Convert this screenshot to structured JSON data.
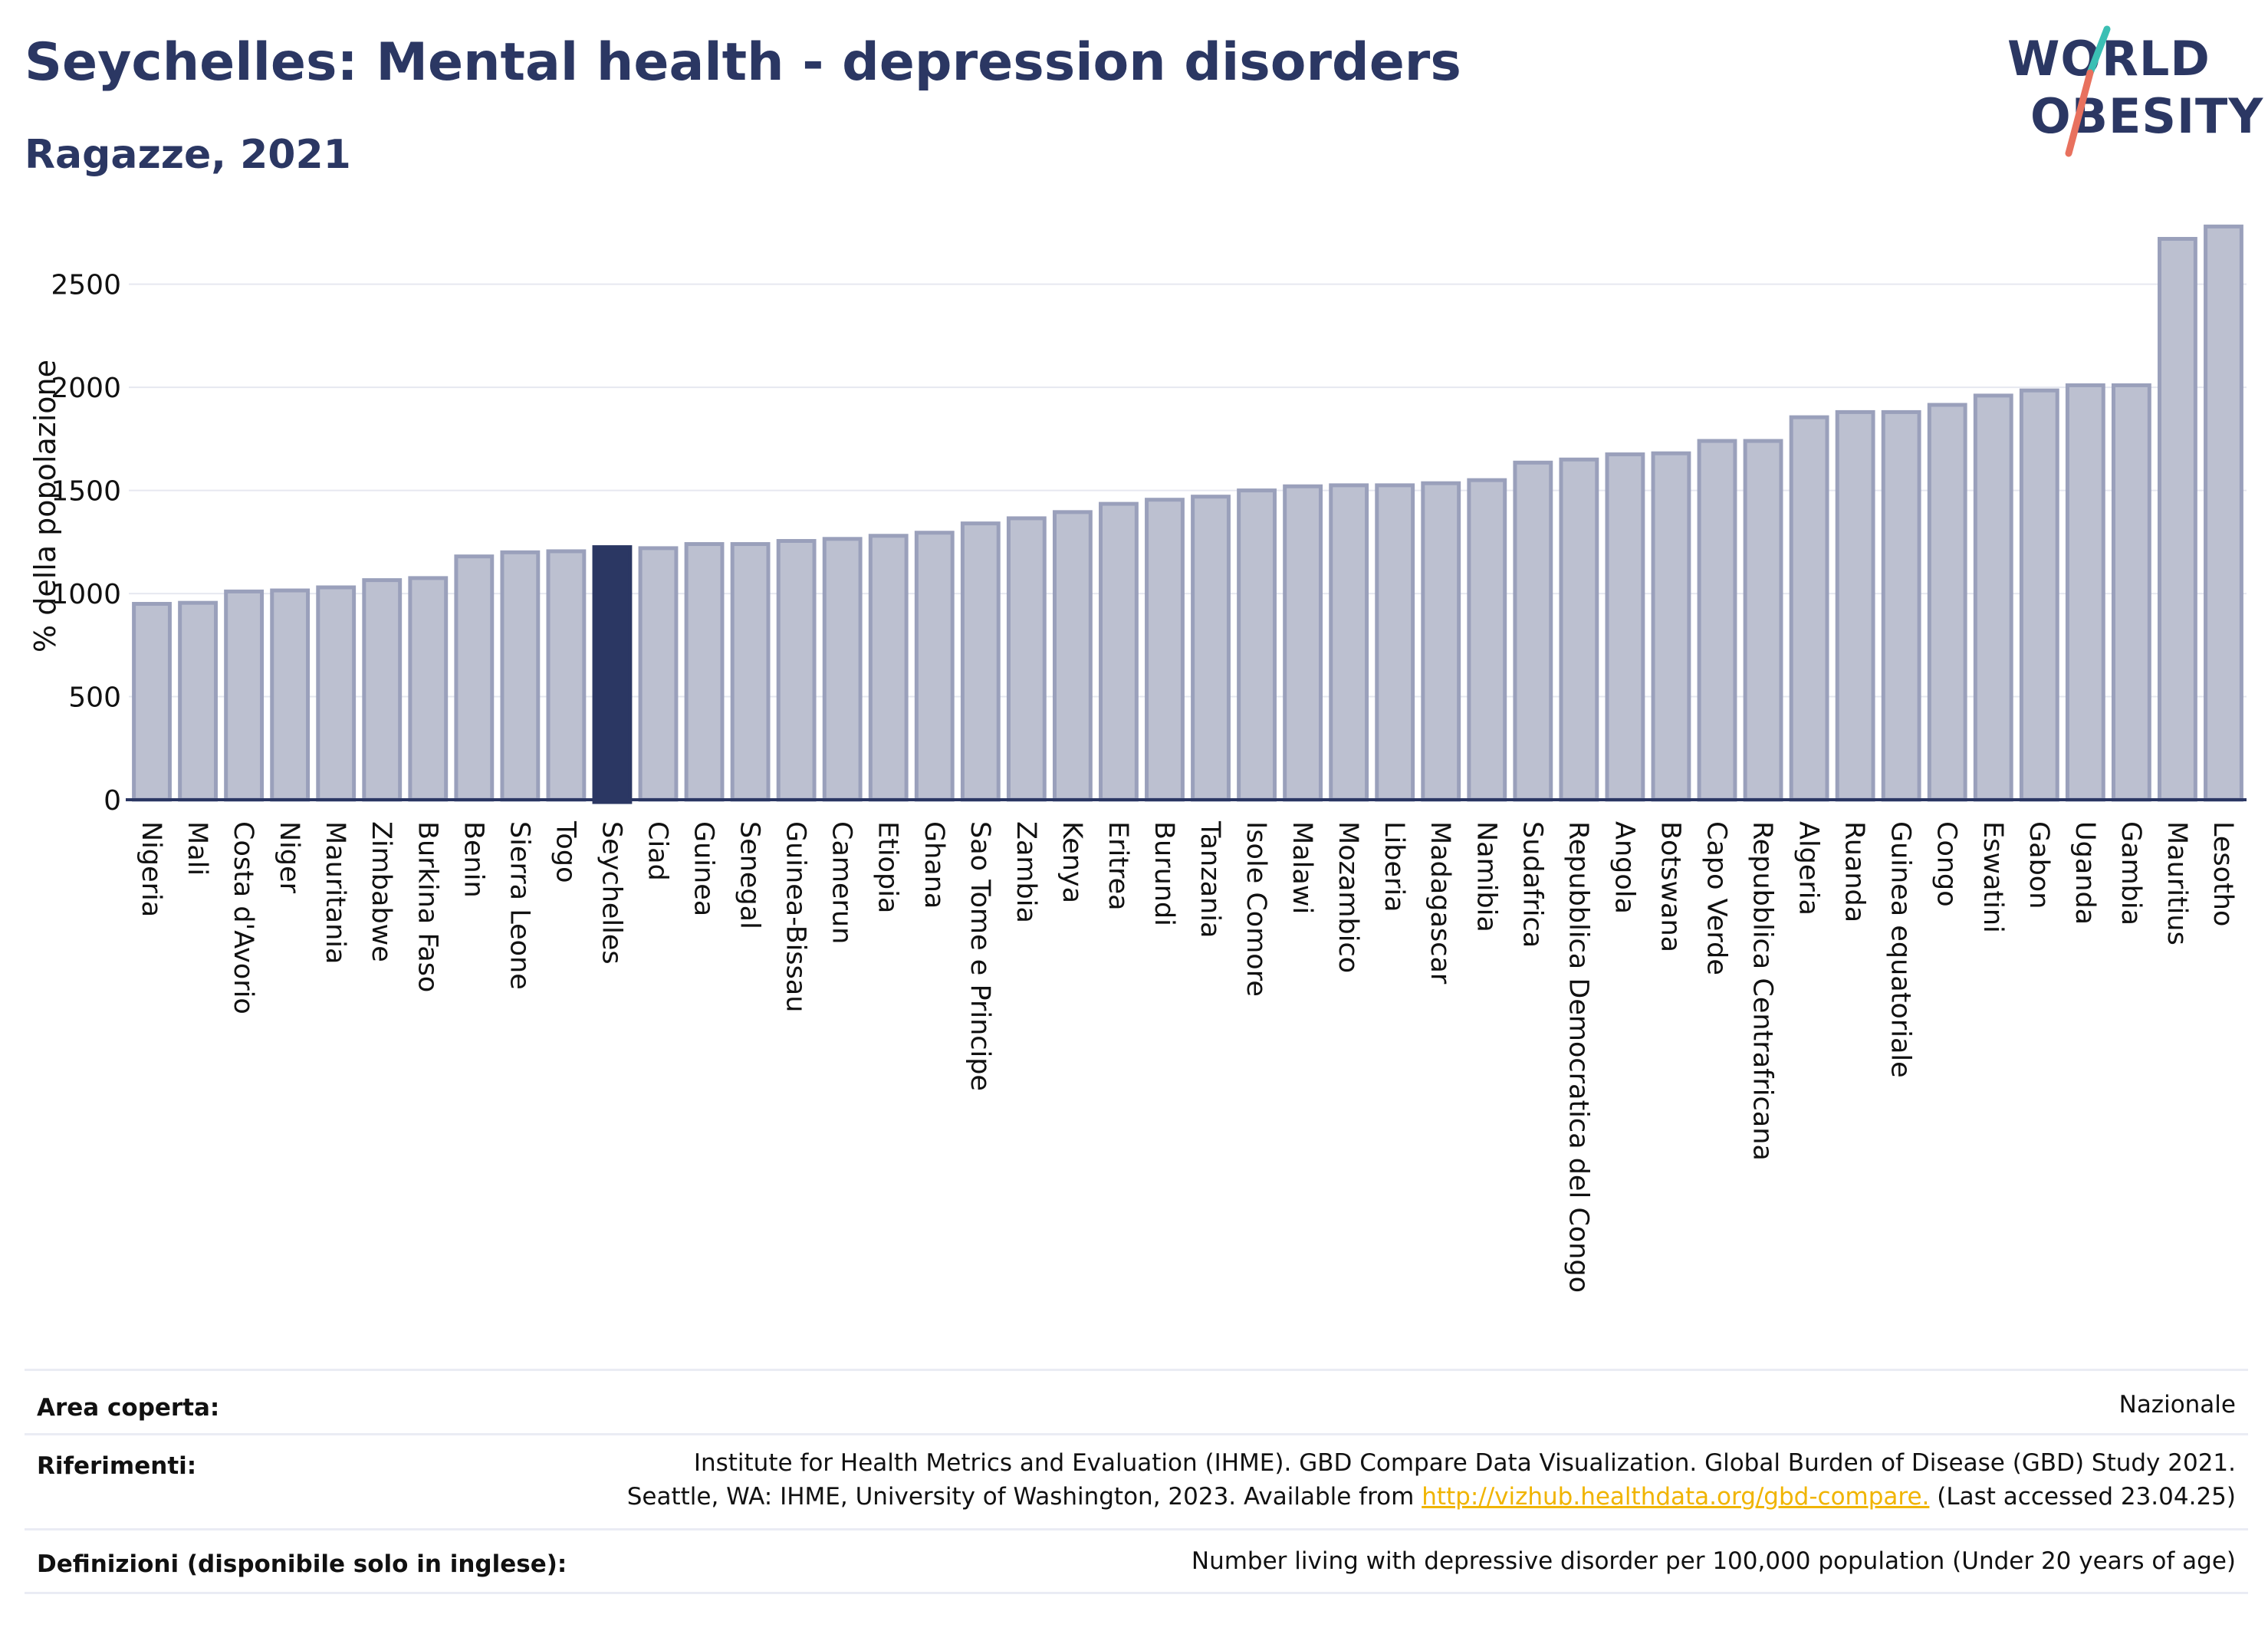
{
  "header": {
    "title": "Seychelles: Mental health - depression disorders",
    "subtitle": "Ragazze, 2021"
  },
  "logo": {
    "line1": "WORLD",
    "line2": "OBESITY"
  },
  "colors": {
    "highlight": "#2b3763",
    "bar": "#bcc0d0",
    "bar_stroke": "#9aa0bb",
    "accent_teal": "#3bbfb4",
    "accent_red": "#e8715e"
  },
  "chart_data": {
    "type": "bar",
    "ylabel": "% della popolazione",
    "ylim": [
      0,
      2800
    ],
    "yticks": [
      0,
      500,
      1000,
      1500,
      2000,
      2500
    ],
    "highlight": "Seychelles",
    "grid": true,
    "categories": [
      "Nigeria",
      "Mali",
      "Costa d'Avorio",
      "Niger",
      "Mauritania",
      "Zimbabwe",
      "Burkina Faso",
      "Benin",
      "Sierra Leone",
      "Togo",
      "Seychelles",
      "Ciad",
      "Guinea",
      "Senegal",
      "Guinea-Bissau",
      "Camerun",
      "Etiopia",
      "Ghana",
      "Sao Tome e Principe",
      "Zambia",
      "Kenya",
      "Eritrea",
      "Burundi",
      "Tanzania",
      "Isole Comore",
      "Malawi",
      "Mozambico",
      "Liberia",
      "Madagascar",
      "Namibia",
      "Sudafrica",
      "Repubblica Democratica del Congo",
      "Angola",
      "Botswana",
      "Capo Verde",
      "Repubblica Centrafricana",
      "Algeria",
      "Ruanda",
      "Guinea equatoriale",
      "Congo",
      "Eswatini",
      "Gabon",
      "Uganda",
      "Gambia",
      "Mauritius",
      "Lesotho"
    ],
    "values": [
      950,
      955,
      1010,
      1015,
      1030,
      1065,
      1075,
      1180,
      1200,
      1205,
      1225,
      1220,
      1240,
      1240,
      1255,
      1265,
      1280,
      1295,
      1340,
      1365,
      1395,
      1435,
      1455,
      1470,
      1500,
      1520,
      1525,
      1525,
      1535,
      1550,
      1635,
      1650,
      1675,
      1680,
      1740,
      1740,
      1855,
      1880,
      1880,
      1915,
      1960,
      1985,
      2010,
      2010,
      2720,
      2780
    ]
  },
  "footer": {
    "area_label": "Area coperta:",
    "area_value": "Nazionale",
    "refs_label": "Riferimenti:",
    "refs_line1": "Institute for Health Metrics and Evaluation (IHME). GBD Compare Data Visualization. Global Burden of Disease (GBD) Study 2021.",
    "refs_line2_pre": "Seattle, WA: IHME, University of Washington, 2023. Available from ",
    "refs_link": "http://vizhub.healthdata.org/gbd-compare.",
    "refs_line2_post": " (Last accessed 23.04.25)",
    "defs_label": "Definizioni (disponibile solo in inglese):",
    "defs_value": "Number living with depressive disorder per 100,000 population (Under 20 years of age)"
  }
}
